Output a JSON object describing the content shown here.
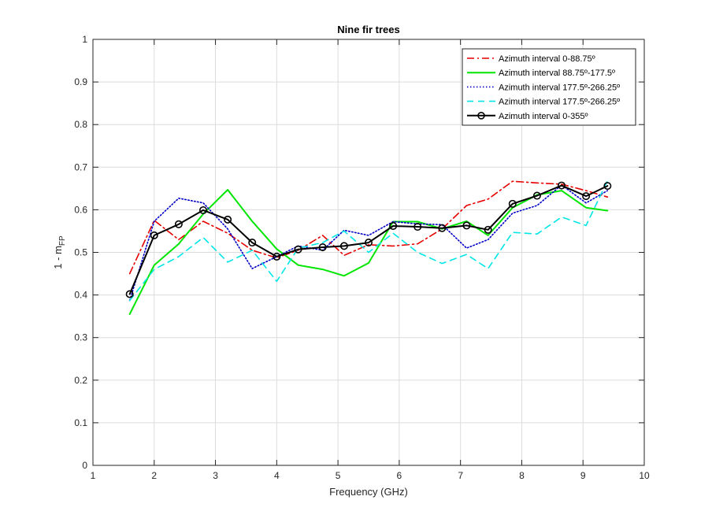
{
  "chart_data": {
    "type": "line",
    "title": "Nine fir trees",
    "xlabel": "Frequency (GHz)",
    "ylabel_main": "1 - m",
    "ylabel_sub": "FP",
    "xlim": [
      1,
      10
    ],
    "ylim": [
      0,
      1
    ],
    "xticks": [
      "1",
      "2",
      "3",
      "4",
      "5",
      "6",
      "7",
      "8",
      "9",
      "10"
    ],
    "yticks": [
      "0",
      "0.1",
      "0.2",
      "0.3",
      "0.4",
      "0.5",
      "0.6",
      "0.7",
      "0.8",
      "0.9",
      "1"
    ],
    "grid": true,
    "legend_position": "top-right",
    "x": [
      1.6,
      2.0,
      2.4,
      2.8,
      3.2,
      3.6,
      4.0,
      4.35,
      4.75,
      5.1,
      5.5,
      5.9,
      6.3,
      6.7,
      7.1,
      7.45,
      7.85,
      8.25,
      8.65,
      9.05,
      9.4
    ],
    "series": [
      {
        "name": "Azimuth interval 0-88.75º",
        "color": "#e60000",
        "style": "dashdot",
        "values": [
          0.45,
          0.575,
          0.53,
          0.573,
          0.545,
          0.505,
          0.487,
          0.505,
          0.54,
          0.493,
          0.518,
          0.515,
          0.52,
          0.555,
          0.61,
          0.625,
          0.667,
          0.663,
          0.66,
          0.645,
          0.63
        ]
      },
      {
        "name": "Azimuth interval 88.75º-177.5º",
        "color": "#00e600",
        "style": "solid",
        "values": [
          0.355,
          0.47,
          0.52,
          0.59,
          0.647,
          0.573,
          0.508,
          0.47,
          0.46,
          0.445,
          0.475,
          0.572,
          0.572,
          0.555,
          0.573,
          0.54,
          0.605,
          0.635,
          0.645,
          0.605,
          0.598
        ]
      },
      {
        "name": "Azimuth interval 177.5º-266.25º",
        "color": "#0000c8",
        "style": "dotted",
        "values": [
          0.387,
          0.573,
          0.627,
          0.616,
          0.555,
          0.462,
          0.49,
          0.515,
          0.505,
          0.552,
          0.54,
          0.572,
          0.567,
          0.565,
          0.51,
          0.53,
          0.592,
          0.61,
          0.658,
          0.616,
          0.645
        ]
      },
      {
        "name": "Azimuth interval 177.5º-266.25º",
        "color": "#00e6e6",
        "style": "dashed",
        "values": [
          0.387,
          0.46,
          0.49,
          0.535,
          0.477,
          0.505,
          0.432,
          0.51,
          0.523,
          0.55,
          0.5,
          0.545,
          0.5,
          0.474,
          0.495,
          0.462,
          0.547,
          0.543,
          0.583,
          0.563,
          0.668
        ]
      },
      {
        "name": "Azimuth interval 0-355º",
        "color": "#000000",
        "style": "solid-marker",
        "values": [
          0.402,
          0.54,
          0.566,
          0.599,
          0.577,
          0.523,
          0.49,
          0.507,
          0.512,
          0.515,
          0.523,
          0.562,
          0.56,
          0.557,
          0.563,
          0.553,
          0.614,
          0.633,
          0.657,
          0.632,
          0.656
        ]
      }
    ]
  }
}
